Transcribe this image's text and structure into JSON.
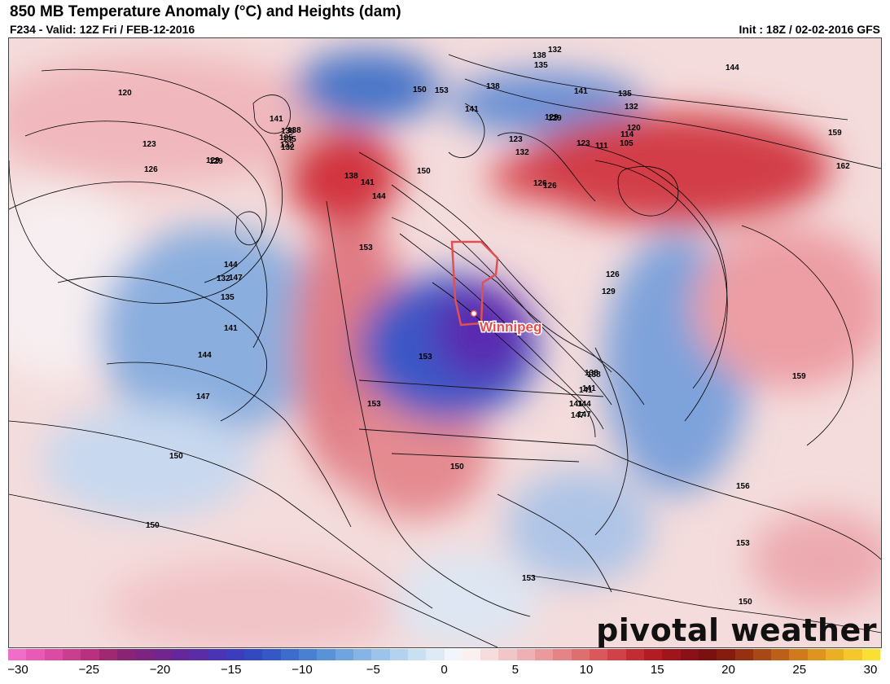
{
  "header": {
    "title": "850 MB Temperature Anomaly (°C) and Heights (dam)",
    "valid": "F234 - Valid: 12Z Fri / FEB-12-2016",
    "init": "Init : 18Z / 02-02-2016 GFS"
  },
  "map": {
    "city": "Winnipeg",
    "height_labels": {
      "l1": "120",
      "l2": "123",
      "l3": "126",
      "l4": "129",
      "l5": "132",
      "l6": "135",
      "l7": "138",
      "l8": "141",
      "l9": "144",
      "l10": "147",
      "l11": "150",
      "l12": "150",
      "l13": "153",
      "l14": "153",
      "l15": "153",
      "l16": "150",
      "l17": "153",
      "l18": "147",
      "l19": "141",
      "l20": "138",
      "l21": "135",
      "l22": "132",
      "l23": "129",
      "l24": "141",
      "l25": "144",
      "l26": "147",
      "l27": "141",
      "l28": "144",
      "l29": "135",
      "l30": "132",
      "l31": "120",
      "l32": "114",
      "l33": "111",
      "l34": "105",
      "l35": "159",
      "l36": "162",
      "l37": "159",
      "l38": "156",
      "l39": "153",
      "l40": "150",
      "l41": "150",
      "l42": "153",
      "l43": "138",
      "l44": "141",
      "l45": "144",
      "l46": "147",
      "l47": "126",
      "l48": "129",
      "l49": "123",
      "l50": "126",
      "l51": "132",
      "l52": "138",
      "l53": "141",
      "l54": "138",
      "l55": "135",
      "l56": "132",
      "l57": "138",
      "l58": "141",
      "l59": "144",
      "l60": "150",
      "l61": "123",
      "l62": "126",
      "l63": "129",
      "l64": "141",
      "l65": "138",
      "l66": "135",
      "l67": "132",
      "l68": "129"
    }
  },
  "colorbar": {
    "ticks": [
      "−30",
      "−25",
      "−20",
      "−15",
      "−10",
      "−5",
      "0",
      "5",
      "10",
      "15",
      "20",
      "25",
      "30"
    ]
  },
  "branding": {
    "name": "pivotal weather"
  }
}
